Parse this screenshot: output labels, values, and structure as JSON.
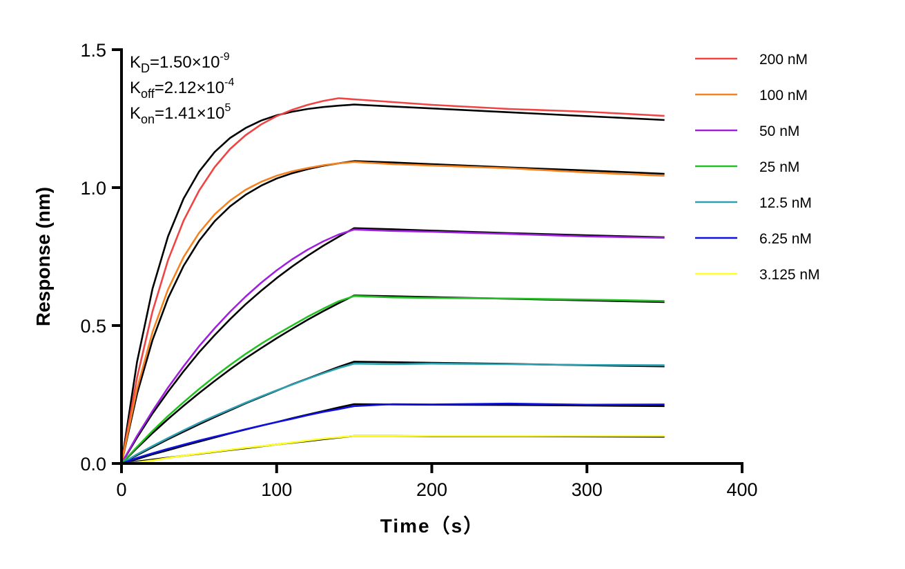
{
  "chart_data": {
    "type": "line",
    "xlabel": "Time（s）",
    "ylabel": "Response (nm)",
    "xlim": [
      0,
      400
    ],
    "ylim": [
      0,
      1.5
    ],
    "xticks": [
      "0",
      "100",
      "200",
      "300",
      "400"
    ],
    "yticks": [
      "0.0",
      "0.5",
      "1.0",
      "1.5"
    ],
    "grid": false,
    "legend_position": "top-right",
    "annotations": [
      {
        "base": "K",
        "sub": "D",
        "value": "=1.50×10",
        "exp": "-9"
      },
      {
        "base": "K",
        "sub": "off",
        "value": "=2.12×10",
        "exp": "-4"
      },
      {
        "base": "K",
        "sub": "on",
        "value": "=1.41×10",
        "exp": "5"
      }
    ],
    "fit_color": "#000000",
    "x": [
      0,
      10,
      20,
      30,
      40,
      50,
      60,
      70,
      80,
      90,
      100,
      110,
      120,
      130,
      140,
      150,
      175,
      200,
      250,
      300,
      350
    ],
    "series": [
      {
        "name": "200 nM",
        "color": "#f04444",
        "values": [
          0,
          0.311,
          0.551,
          0.737,
          0.88,
          0.989,
          1.074,
          1.14,
          1.19,
          1.229,
          1.259,
          1.282,
          1.3,
          1.314,
          1.324,
          1.32,
          1.31,
          1.3,
          1.285,
          1.275,
          1.26
        ],
        "fit": [
          0,
          0.368,
          0.633,
          0.823,
          0.96,
          1.058,
          1.129,
          1.18,
          1.216,
          1.243,
          1.262,
          1.275,
          1.285,
          1.292,
          1.297,
          1.301,
          1.294,
          1.287,
          1.273,
          1.259,
          1.245
        ]
      },
      {
        "name": "100 nM",
        "color": "#f5821e",
        "values": [
          0,
          0.271,
          0.476,
          0.631,
          0.748,
          0.836,
          0.903,
          0.953,
          0.992,
          1.021,
          1.043,
          1.059,
          1.071,
          1.081,
          1.088,
          1.093,
          1.085,
          1.08,
          1.07,
          1.055,
          1.043
        ],
        "fit": [
          0,
          0.252,
          0.447,
          0.599,
          0.716,
          0.807,
          0.878,
          0.932,
          0.974,
          1.007,
          1.033,
          1.052,
          1.067,
          1.079,
          1.088,
          1.096,
          1.091,
          1.085,
          1.073,
          1.062,
          1.05
        ]
      },
      {
        "name": "50 nM",
        "color": "#a020e0",
        "values": [
          0,
          0.1,
          0.19,
          0.275,
          0.352,
          0.425,
          0.49,
          0.55,
          0.605,
          0.655,
          0.7,
          0.74,
          0.775,
          0.805,
          0.83,
          0.848,
          0.843,
          0.84,
          0.832,
          0.823,
          0.818
        ],
        "fit": [
          0,
          0.094,
          0.181,
          0.26,
          0.334,
          0.403,
          0.465,
          0.523,
          0.577,
          0.626,
          0.672,
          0.714,
          0.753,
          0.789,
          0.822,
          0.853,
          0.849,
          0.844,
          0.835,
          0.827,
          0.82
        ]
      },
      {
        "name": "25 nM",
        "color": "#22c022",
        "values": [
          0,
          0.06,
          0.118,
          0.172,
          0.222,
          0.27,
          0.315,
          0.357,
          0.397,
          0.434,
          0.468,
          0.5,
          0.532,
          0.561,
          0.588,
          0.607,
          0.602,
          0.6,
          0.598,
          0.594,
          0.589
        ],
        "fit": [
          0,
          0.056,
          0.11,
          0.161,
          0.209,
          0.255,
          0.299,
          0.341,
          0.381,
          0.418,
          0.454,
          0.488,
          0.521,
          0.552,
          0.581,
          0.609,
          0.606,
          0.603,
          0.597,
          0.591,
          0.585
        ]
      },
      {
        "name": "12.5 nM",
        "color": "#2aa0b0",
        "values": [
          0,
          0.033,
          0.063,
          0.092,
          0.12,
          0.147,
          0.172,
          0.196,
          0.22,
          0.243,
          0.265,
          0.286,
          0.307,
          0.327,
          0.346,
          0.362,
          0.36,
          0.362,
          0.36,
          0.357,
          0.356
        ],
        "fit": [
          0,
          0.03,
          0.059,
          0.088,
          0.115,
          0.142,
          0.168,
          0.193,
          0.218,
          0.241,
          0.264,
          0.287,
          0.308,
          0.329,
          0.35,
          0.369,
          0.367,
          0.365,
          0.361,
          0.356,
          0.352
        ]
      },
      {
        "name": "6.25 nM",
        "color": "#1010e0",
        "values": [
          0,
          0.02,
          0.037,
          0.053,
          0.068,
          0.083,
          0.097,
          0.11,
          0.124,
          0.137,
          0.15,
          0.162,
          0.175,
          0.187,
          0.197,
          0.208,
          0.215,
          0.214,
          0.217,
          0.213,
          0.214
        ],
        "fit": [
          0,
          0.016,
          0.033,
          0.048,
          0.064,
          0.079,
          0.094,
          0.109,
          0.123,
          0.137,
          0.15,
          0.164,
          0.177,
          0.19,
          0.203,
          0.215,
          0.214,
          0.213,
          0.212,
          0.21,
          0.208
        ]
      },
      {
        "name": "3.125 nM",
        "color": "#ffff22",
        "values": [
          0,
          0.004,
          0.011,
          0.02,
          0.028,
          0.036,
          0.043,
          0.05,
          0.057,
          0.063,
          0.069,
          0.076,
          0.083,
          0.09,
          0.095,
          0.1,
          0.1,
          0.1,
          0.1,
          0.1,
          0.1
        ],
        "fit": [
          0,
          0.007,
          0.014,
          0.021,
          0.028,
          0.035,
          0.042,
          0.049,
          0.055,
          0.062,
          0.069,
          0.075,
          0.081,
          0.088,
          0.094,
          0.1,
          0.1,
          0.099,
          0.099,
          0.098,
          0.097
        ]
      }
    ]
  }
}
